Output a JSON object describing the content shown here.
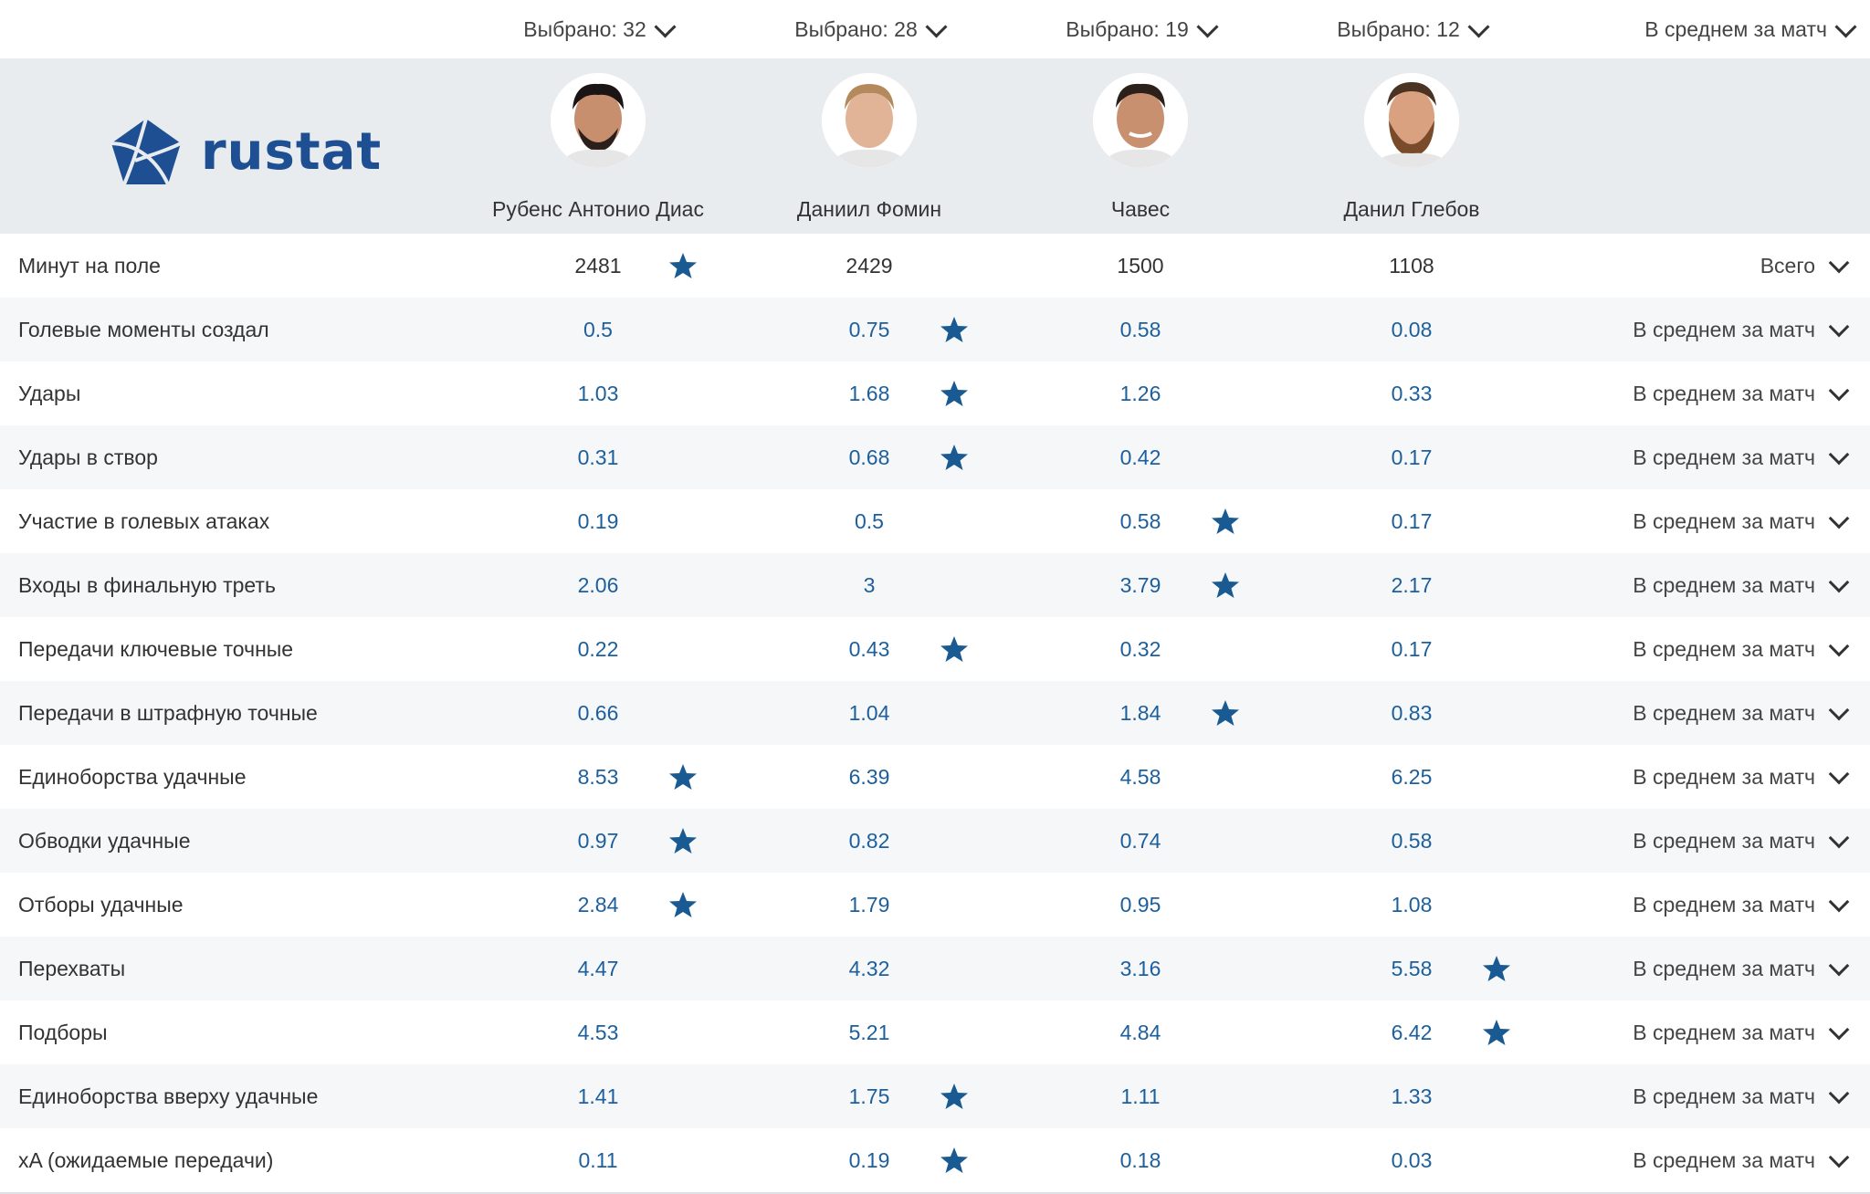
{
  "selectors": [
    {
      "label": "Выбрано: 32"
    },
    {
      "label": "Выбрано: 28"
    },
    {
      "label": "Выбрано: 19"
    },
    {
      "label": "Выбрано: 12"
    },
    {
      "label": "В среднем за матч"
    }
  ],
  "brand": {
    "logo_text": "rustat",
    "color": "#1e4f93"
  },
  "players": [
    {
      "name": "Рубенс Антонио Диас",
      "avatar": "avatar-photo"
    },
    {
      "name": "Даниил Фомин",
      "avatar": "avatar-photo"
    },
    {
      "name": "Чавес",
      "avatar": "avatar-photo"
    },
    {
      "name": "Данил Глебов",
      "avatar": "avatar-photo"
    }
  ],
  "colors": {
    "value_link": "#1c5f9c",
    "star": "#1a5a93",
    "header_bg": "#e9ecef"
  },
  "stats": [
    {
      "label": "Минут на поле",
      "values": [
        "2481",
        "2429",
        "1500",
        "1108"
      ],
      "best": 0,
      "mode": "Всего"
    },
    {
      "label": "Голевые моменты создал",
      "values": [
        "0.5",
        "0.75",
        "0.58",
        "0.08"
      ],
      "best": 1,
      "mode": "В среднем за матч"
    },
    {
      "label": "Удары",
      "values": [
        "1.03",
        "1.68",
        "1.26",
        "0.33"
      ],
      "best": 1,
      "mode": "В среднем за матч"
    },
    {
      "label": "Удары в створ",
      "values": [
        "0.31",
        "0.68",
        "0.42",
        "0.17"
      ],
      "best": 1,
      "mode": "В среднем за матч"
    },
    {
      "label": "Участие в голевых атаках",
      "values": [
        "0.19",
        "0.5",
        "0.58",
        "0.17"
      ],
      "best": 2,
      "mode": "В среднем за матч"
    },
    {
      "label": "Входы в финальную треть",
      "values": [
        "2.06",
        "3",
        "3.79",
        "2.17"
      ],
      "best": 2,
      "mode": "В среднем за матч"
    },
    {
      "label": "Передачи ключевые точные",
      "values": [
        "0.22",
        "0.43",
        "0.32",
        "0.17"
      ],
      "best": 1,
      "mode": "В среднем за матч"
    },
    {
      "label": "Передачи в штрафную точные",
      "values": [
        "0.66",
        "1.04",
        "1.84",
        "0.83"
      ],
      "best": 2,
      "mode": "В среднем за матч"
    },
    {
      "label": "Единоборства удачные",
      "values": [
        "8.53",
        "6.39",
        "4.58",
        "6.25"
      ],
      "best": 0,
      "mode": "В среднем за матч"
    },
    {
      "label": "Обводки удачные",
      "values": [
        "0.97",
        "0.82",
        "0.74",
        "0.58"
      ],
      "best": 0,
      "mode": "В среднем за матч"
    },
    {
      "label": "Отборы удачные",
      "values": [
        "2.84",
        "1.79",
        "0.95",
        "1.08"
      ],
      "best": 0,
      "mode": "В среднем за матч"
    },
    {
      "label": "Перехваты",
      "values": [
        "4.47",
        "4.32",
        "3.16",
        "5.58"
      ],
      "best": 3,
      "mode": "В среднем за матч"
    },
    {
      "label": "Подборы",
      "values": [
        "4.53",
        "5.21",
        "4.84",
        "6.42"
      ],
      "best": 3,
      "mode": "В среднем за матч"
    },
    {
      "label": "Единоборства вверху удачные",
      "values": [
        "1.41",
        "1.75",
        "1.11",
        "1.33"
      ],
      "best": 1,
      "mode": "В среднем за матч"
    },
    {
      "label": "xA (ожидаемые передачи)",
      "values": [
        "0.11",
        "0.19",
        "0.18",
        "0.03"
      ],
      "best": 1,
      "mode": "В среднем за матч"
    }
  ]
}
